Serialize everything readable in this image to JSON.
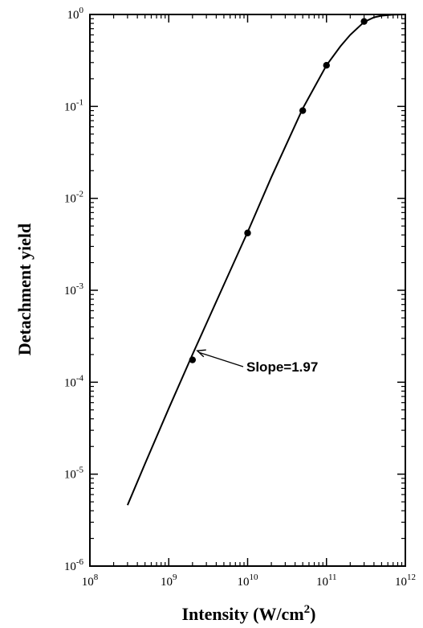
{
  "chart_data": {
    "type": "line",
    "xlabel": "Intensity (W/cm",
    "xlabel_unit_exp": "2",
    "xlabel_close": ")",
    "ylabel": "Detachment yield",
    "x_scale": "log",
    "y_scale": "log",
    "xlim": [
      100000000.0,
      1000000000000.0
    ],
    "ylim": [
      1e-06,
      1
    ],
    "x_ticks": [
      {
        "value": 100000000.0,
        "base": "10",
        "exp": "8"
      },
      {
        "value": 1000000000.0,
        "base": "10",
        "exp": "9"
      },
      {
        "value": 10000000000.0,
        "base": "10",
        "exp": "10"
      },
      {
        "value": 100000000000.0,
        "base": "10",
        "exp": "11"
      },
      {
        "value": 1000000000000.0,
        "base": "10",
        "exp": "12"
      }
    ],
    "y_ticks": [
      {
        "value": 1e-06,
        "base": "10",
        "exp": "-6"
      },
      {
        "value": 1e-05,
        "base": "10",
        "exp": "-5"
      },
      {
        "value": 0.0001,
        "base": "10",
        "exp": "-4"
      },
      {
        "value": 0.001,
        "base": "10",
        "exp": "-3"
      },
      {
        "value": 0.01,
        "base": "10",
        "exp": "-2"
      },
      {
        "value": 0.1,
        "base": "10",
        "exp": "-1"
      },
      {
        "value": 1,
        "base": "10",
        "exp": "0"
      }
    ],
    "grid": false,
    "series": [
      {
        "kind": "curve",
        "x": [
          300000000.0,
          500000000.0,
          1000000000.0,
          2000000000.0,
          5000000000.0,
          10000000000.0,
          20000000000.0,
          50000000000.0,
          100000000000.0,
          150000000000.0,
          200000000000.0,
          300000000000.0,
          400000000000.0,
          500000000000.0,
          700000000000.0,
          1000000000000.0
        ],
        "y": [
          4.6e-06,
          1.3e-05,
          5.2e-05,
          0.0002,
          0.00115,
          0.0043,
          0.017,
          0.095,
          0.28,
          0.45,
          0.6,
          0.83,
          0.93,
          0.97,
          0.995,
          1.0
        ]
      },
      {
        "kind": "points",
        "x": [
          2000000000.0,
          10000000000.0,
          50000000000.0,
          100000000000.0,
          300000000000.0
        ],
        "y": [
          0.000175,
          0.0042,
          0.09,
          0.28,
          0.84
        ]
      }
    ],
    "annotations": [
      {
        "text": "Slope=1.97",
        "arrow_to": {
          "x": 2300000000.0,
          "y": 0.00022
        }
      }
    ],
    "colors": {
      "line": "#000000",
      "points": "#000000",
      "background": "#ffffff"
    }
  }
}
